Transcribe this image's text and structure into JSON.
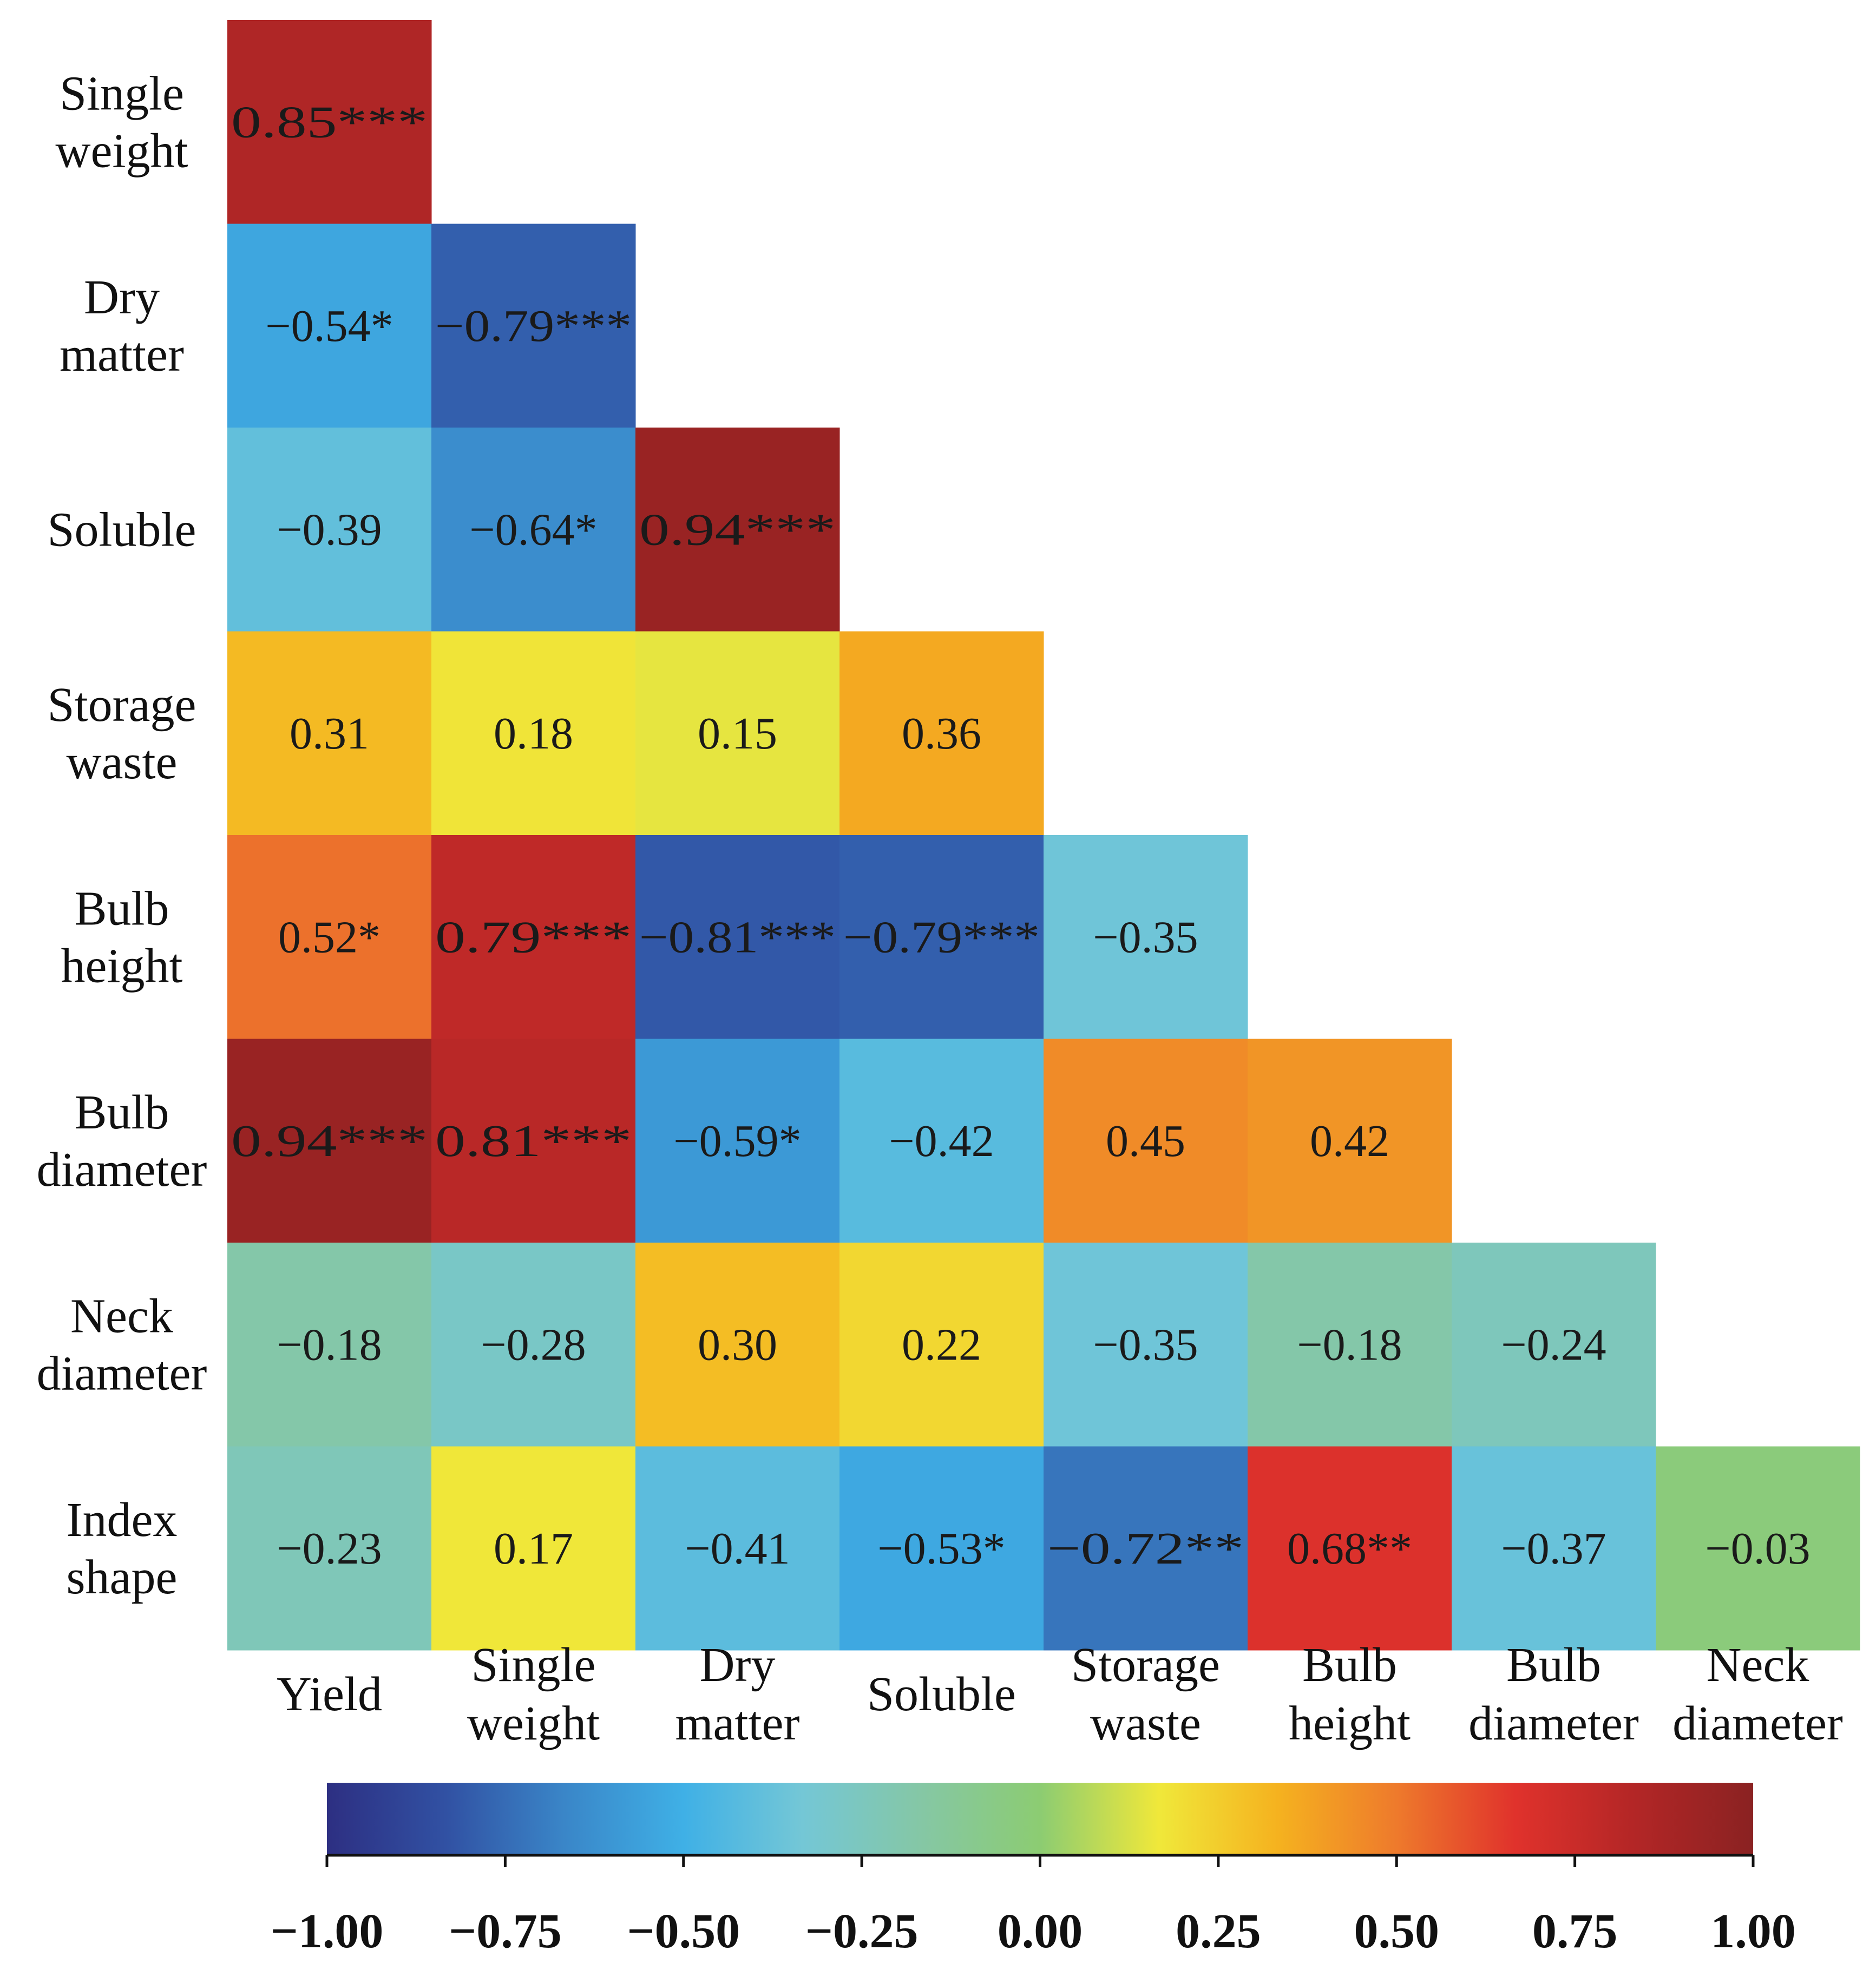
{
  "chart_data": {
    "type": "heatmap",
    "title": "",
    "row_labels": [
      [
        "Single",
        "weight"
      ],
      [
        "Dry",
        "matter"
      ],
      [
        "Soluble"
      ],
      [
        "Storage",
        "waste"
      ],
      [
        "Bulb",
        "height"
      ],
      [
        "Bulb",
        "diameter"
      ],
      [
        "Neck",
        "diameter"
      ],
      [
        "Index",
        "shape"
      ]
    ],
    "col_labels": [
      [
        "Yield"
      ],
      [
        "Single",
        "weight"
      ],
      [
        "Dry",
        "matter"
      ],
      [
        "Soluble"
      ],
      [
        "Storage",
        "waste"
      ],
      [
        "Bulb",
        "height"
      ],
      [
        "Bulb",
        "diameter"
      ],
      [
        "Neck",
        "diameter"
      ]
    ],
    "cells": [
      [
        {
          "v": 0.85,
          "t": "0.85***"
        }
      ],
      [
        {
          "v": -0.54,
          "t": "−0.54*"
        },
        {
          "v": -0.79,
          "t": "−0.79***"
        }
      ],
      [
        {
          "v": -0.39,
          "t": "−0.39"
        },
        {
          "v": -0.64,
          "t": "−0.64*"
        },
        {
          "v": 0.94,
          "t": "0.94***"
        }
      ],
      [
        {
          "v": 0.31,
          "t": "0.31"
        },
        {
          "v": 0.18,
          "t": "0.18"
        },
        {
          "v": 0.15,
          "t": "0.15"
        },
        {
          "v": 0.36,
          "t": "0.36"
        }
      ],
      [
        {
          "v": 0.52,
          "t": "0.52*"
        },
        {
          "v": 0.79,
          "t": "0.79***"
        },
        {
          "v": -0.81,
          "t": "−0.81***"
        },
        {
          "v": -0.79,
          "t": "−0.79***"
        },
        {
          "v": -0.35,
          "t": "−0.35"
        }
      ],
      [
        {
          "v": 0.94,
          "t": "0.94***"
        },
        {
          "v": 0.81,
          "t": "0.81***"
        },
        {
          "v": -0.59,
          "t": "−0.59*"
        },
        {
          "v": -0.42,
          "t": "−0.42"
        },
        {
          "v": 0.45,
          "t": "0.45"
        },
        {
          "v": 0.42,
          "t": "0.42"
        }
      ],
      [
        {
          "v": -0.18,
          "t": "−0.18"
        },
        {
          "v": -0.28,
          "t": "−0.28"
        },
        {
          "v": 0.3,
          "t": "0.30"
        },
        {
          "v": 0.22,
          "t": "0.22"
        },
        {
          "v": -0.35,
          "t": "−0.35"
        },
        {
          "v": -0.18,
          "t": "−0.18"
        },
        {
          "v": -0.24,
          "t": "−0.24"
        }
      ],
      [
        {
          "v": -0.23,
          "t": "−0.23"
        },
        {
          "v": 0.17,
          "t": "0.17"
        },
        {
          "v": -0.41,
          "t": "−0.41"
        },
        {
          "v": -0.53,
          "t": "−0.53*"
        },
        {
          "v": -0.72,
          "t": "−0.72**"
        },
        {
          "v": 0.68,
          "t": "0.68**"
        },
        {
          "v": -0.37,
          "t": "−0.37"
        },
        {
          "v": -0.03,
          "t": "−0.03"
        }
      ]
    ],
    "colorbar": {
      "range": [
        -1.0,
        1.0
      ],
      "ticks": [
        "−1.00",
        "−0.75",
        "−0.50",
        "−0.25",
        "0.00",
        "0.25",
        "0.50",
        "0.75",
        "1.00"
      ],
      "colors": [
        "#2d2f82",
        "#3151a3",
        "#3a86c8",
        "#3fb0e6",
        "#74c7d6",
        "#85c7a5",
        "#8ccc72",
        "#f0e83a",
        "#f5b21f",
        "#ee7a2c",
        "#e0322c",
        "#b32626",
        "#8a2222"
      ]
    }
  }
}
